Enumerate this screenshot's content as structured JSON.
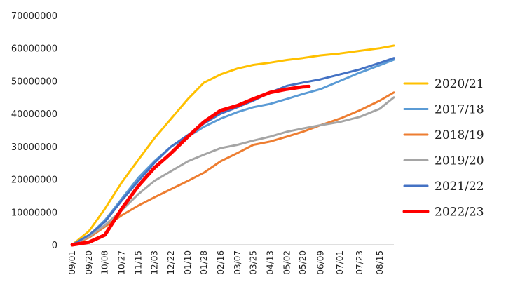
{
  "chart_data": {
    "type": "line",
    "title": "",
    "xlabel": "",
    "ylabel": "",
    "ylim": [
      0,
      70000000
    ],
    "yticks": [
      0,
      10000000,
      20000000,
      30000000,
      40000000,
      50000000,
      60000000,
      70000000
    ],
    "ytick_labels": [
      "0",
      "10000000",
      "20000000",
      "30000000",
      "40000000",
      "50000000",
      "60000000",
      "70000000"
    ],
    "x_tick_labels": [
      "09/01",
      "09/20",
      "10/08",
      "10/27",
      "11/15",
      "12/03",
      "12/22",
      "01/10",
      "01/28",
      "02/16",
      "03/07",
      "03/25",
      "04/13",
      "05/02",
      "05/20",
      "06/09",
      "07/01",
      "07/23",
      "08/15"
    ],
    "x_tick_index": [
      0,
      19,
      37,
      56,
      75,
      93,
      112,
      131,
      149,
      168,
      187,
      205,
      224,
      243,
      261,
      281,
      303,
      325,
      348
    ],
    "xlim": [
      0,
      364
    ],
    "grid": false,
    "legend_position": "right",
    "series": [
      {
        "name": "2020/21",
        "color": "#FFC000",
        "x": [
          0,
          19,
          37,
          56,
          75,
          93,
          112,
          131,
          149,
          168,
          187,
          205,
          224,
          243,
          261,
          281,
          303,
          325,
          348,
          364
        ],
        "values": [
          0,
          4200000,
          11000000,
          19000000,
          26000000,
          32500000,
          38500000,
          44500000,
          49500000,
          52000000,
          53800000,
          54900000,
          55600000,
          56400000,
          57000000,
          57800000,
          58400000,
          59200000,
          60000000,
          60800000
        ]
      },
      {
        "name": "2017/18",
        "color": "#5B9BD5",
        "x": [
          0,
          19,
          37,
          56,
          75,
          93,
          112,
          131,
          149,
          168,
          187,
          205,
          224,
          243,
          261,
          281,
          303,
          325,
          348,
          364
        ],
        "values": [
          0,
          2800000,
          7500000,
          14000000,
          20500000,
          25500000,
          30000000,
          33000000,
          36000000,
          38500000,
          40500000,
          42000000,
          43000000,
          44500000,
          46000000,
          47500000,
          50000000,
          52500000,
          54800000,
          56500000
        ]
      },
      {
        "name": "2018/19",
        "color": "#ED7D31",
        "x": [
          0,
          19,
          37,
          56,
          75,
          93,
          112,
          131,
          149,
          168,
          187,
          205,
          224,
          243,
          261,
          281,
          303,
          325,
          348,
          364
        ],
        "values": [
          0,
          2200000,
          5500000,
          9000000,
          12000000,
          14500000,
          17000000,
          19500000,
          22000000,
          25500000,
          28000000,
          30500000,
          31500000,
          33000000,
          34500000,
          36500000,
          38500000,
          41000000,
          44000000,
          46500000
        ]
      },
      {
        "name": "2019/20",
        "color": "#A5A5A5",
        "x": [
          0,
          19,
          37,
          56,
          75,
          93,
          112,
          131,
          149,
          168,
          187,
          205,
          224,
          243,
          261,
          281,
          303,
          325,
          348,
          364
        ],
        "values": [
          0,
          2500000,
          6000000,
          10500000,
          15500000,
          19500000,
          22500000,
          25500000,
          27500000,
          29500000,
          30500000,
          31800000,
          33000000,
          34500000,
          35500000,
          36500000,
          37500000,
          39000000,
          41500000,
          45000000
        ]
      },
      {
        "name": "2021/22",
        "color": "#4472C4",
        "x": [
          0,
          19,
          37,
          56,
          75,
          93,
          112,
          131,
          149,
          168,
          187,
          205,
          224,
          243,
          261,
          281,
          303,
          325,
          348,
          364
        ],
        "values": [
          0,
          3000000,
          7000000,
          13500000,
          19500000,
          25000000,
          30000000,
          33500000,
          37000000,
          40000000,
          42000000,
          44000000,
          46500000,
          48500000,
          49500000,
          50500000,
          52000000,
          53500000,
          55500000,
          57000000
        ]
      },
      {
        "name": "2022/23",
        "color": "#FF0000",
        "x": [
          0,
          19,
          37,
          56,
          75,
          93,
          112,
          131,
          149,
          168,
          187,
          205,
          224,
          243,
          261,
          268
        ],
        "values": [
          0,
          800000,
          3000000,
          11000000,
          18000000,
          23500000,
          28000000,
          33000000,
          37500000,
          41000000,
          42500000,
          44500000,
          46500000,
          47500000,
          48200000,
          48300000
        ]
      }
    ]
  }
}
